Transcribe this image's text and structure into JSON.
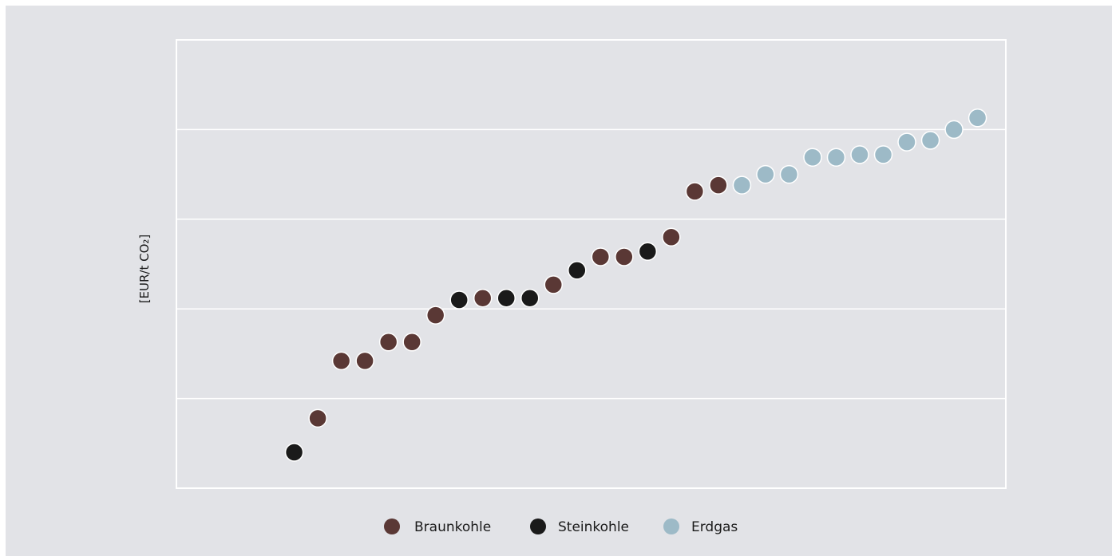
{
  "chart_data": {
    "type": "scatter",
    "title": "",
    "xlabel": "",
    "ylabel": "[EUR/t CO₂]",
    "grid": true,
    "legend_position": "bottom-center",
    "x": [
      1,
      2,
      3,
      4,
      5,
      6,
      7,
      8,
      9,
      10,
      11,
      12,
      13,
      14,
      15,
      16,
      17,
      18,
      19,
      20,
      21,
      22,
      23,
      24,
      25,
      26,
      27,
      28,
      29,
      30
    ],
    "y": [
      0.4,
      0.78,
      1.42,
      1.42,
      1.63,
      1.63,
      1.93,
      2.1,
      2.12,
      2.12,
      2.12,
      2.27,
      2.43,
      2.58,
      2.58,
      2.64,
      2.8,
      3.31,
      3.38,
      3.38,
      3.5,
      3.5,
      3.69,
      3.69,
      3.72,
      3.72,
      3.86,
      3.88,
      4.0,
      4.13
    ],
    "categories": [
      "Braunkohle",
      "Steinkohle",
      "Erdgas"
    ],
    "point_category": [
      "Steinkohle",
      "Braunkohle",
      "Braunkohle",
      "Braunkohle",
      "Braunkohle",
      "Braunkohle",
      "Braunkohle",
      "Steinkohle",
      "Braunkohle",
      "Steinkohle",
      "Steinkohle",
      "Braunkohle",
      "Steinkohle",
      "Braunkohle",
      "Braunkohle",
      "Steinkohle",
      "Braunkohle",
      "Braunkohle",
      "Braunkohle",
      "Erdgas",
      "Erdgas",
      "Erdgas",
      "Erdgas",
      "Erdgas",
      "Erdgas",
      "Erdgas",
      "Erdgas",
      "Erdgas",
      "Erdgas",
      "Erdgas"
    ],
    "xlim": [
      -4,
      31.2
    ],
    "ylim": [
      0,
      5
    ],
    "colors": {
      "Braunkohle": "#5a3835",
      "Steinkohle": "#1a1a1a",
      "Erdgas": "#9dbac7"
    }
  },
  "legend": {
    "items": [
      {
        "label": "Braunkohle",
        "color": "#5a3835"
      },
      {
        "label": "Steinkohle",
        "color": "#1a1a1a"
      },
      {
        "label": "Erdgas",
        "color": "#9dbac7"
      }
    ]
  }
}
